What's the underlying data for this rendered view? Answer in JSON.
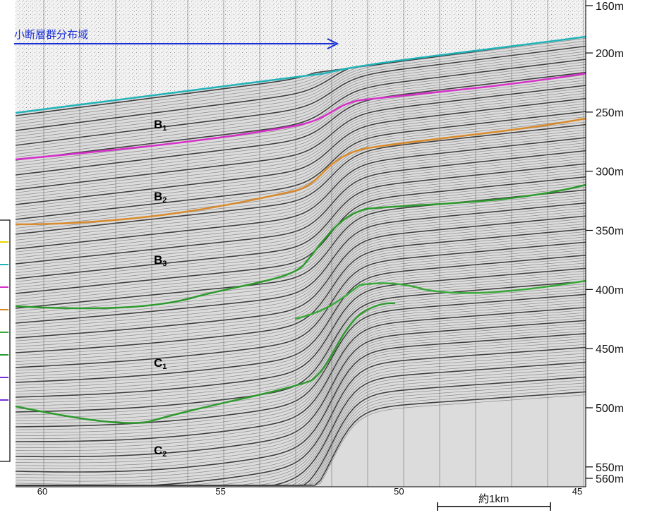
{
  "annotation": {
    "text": "小断層群分布域",
    "arrow_color": "#1a2fd6"
  },
  "depth_axis": {
    "ticks": [
      {
        "label": "160m",
        "value": 160
      },
      {
        "label": "200m",
        "value": 200
      },
      {
        "label": "250m",
        "value": 250
      },
      {
        "label": "300m",
        "value": 300
      },
      {
        "label": "350m",
        "value": 350
      },
      {
        "label": "400m",
        "value": 400
      },
      {
        "label": "450m",
        "value": 450
      },
      {
        "label": "500m",
        "value": 500
      },
      {
        "label": "550m",
        "value": 550
      },
      {
        "label": "560m",
        "value": 560
      }
    ]
  },
  "distance_axis": {
    "ticks": [
      {
        "label": "60",
        "value": 60
      },
      {
        "label": "55",
        "value": 55
      },
      {
        "label": "50",
        "value": 50
      },
      {
        "label": "45",
        "value": 45
      }
    ]
  },
  "scale_bar": {
    "label": "約1km"
  },
  "units": [
    {
      "name": "B",
      "sub": "1",
      "key": "b1"
    },
    {
      "name": "B",
      "sub": "2",
      "key": "b2"
    },
    {
      "name": "B",
      "sub": "3",
      "key": "b3"
    },
    {
      "name": "C",
      "sub": "1",
      "key": "c1"
    },
    {
      "name": "C",
      "sub": "2",
      "key": "c2"
    }
  ],
  "horizons": [
    {
      "key": "seafloor",
      "color": "#22b3b8"
    },
    {
      "key": "b1-base",
      "color": "#d630c9"
    },
    {
      "key": "b2-base",
      "color": "#d98a2a"
    },
    {
      "key": "b3-base",
      "color": "#2c9a2c"
    },
    {
      "key": "c1-upper",
      "color": "#3aa83a"
    },
    {
      "key": "c1-base",
      "color": "#2f9a2f"
    }
  ],
  "legend_swatch_colors": [
    "#e8d200",
    "#22b3b8",
    "#d630c9",
    "#d98a2a",
    "#3aa83a",
    "#2c9a2c",
    "#7a2fd6",
    "#7a2fd6"
  ]
}
